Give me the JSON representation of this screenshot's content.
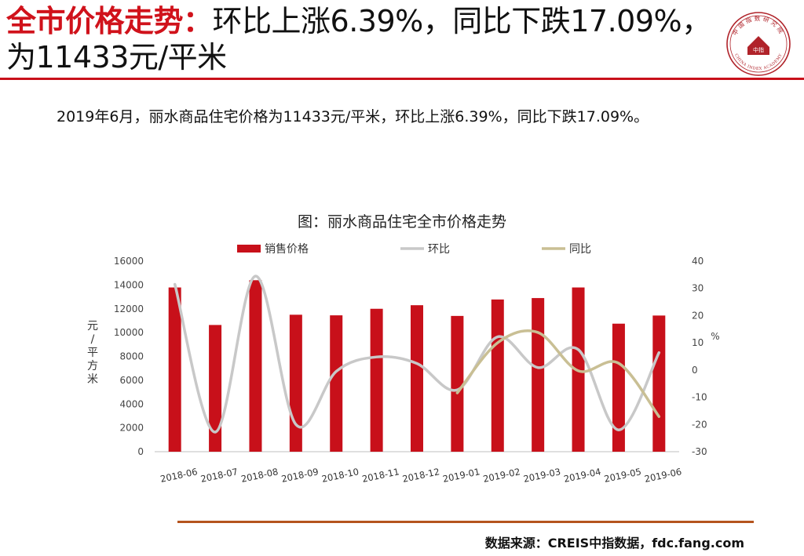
{
  "header": {
    "title_red": "全市价格走势：",
    "title_black": "环比上涨6.39%，同比下跌17.09%，为11433元/平米"
  },
  "logo": {
    "text_top": "中国指数研究院",
    "text_bottom": "CHINA INDEX ACADEMY",
    "center": "中指"
  },
  "summary": "2019年6月，丽水商品住宅价格为11433元/平米，环比上涨6.39%，同比下跌17.09%。",
  "source": "数据来源：CREIS中指数据，fdc.fang.com",
  "colors": {
    "accent": "#c8101a",
    "bar": "#c8101a",
    "mom_line": "#c8c8c8",
    "yoy_line": "#c9bf94",
    "bottom_rule": "#b5541e"
  },
  "chart_data": {
    "type": "bar",
    "title": "图：丽水商品住宅全市价格走势",
    "categories": [
      "2018-06",
      "2018-07",
      "2018-08",
      "2018-09",
      "2018-10",
      "2018-11",
      "2018-12",
      "2019-01",
      "2019-02",
      "2019-03",
      "2019-04",
      "2019-05",
      "2019-06"
    ],
    "series": [
      {
        "name": "销售价格",
        "kind": "bar",
        "axis": "left",
        "values": [
          13790,
          10640,
          14400,
          11500,
          11450,
          12000,
          12300,
          11400,
          12780,
          12900,
          13790,
          10750,
          11433
        ]
      },
      {
        "name": "环比",
        "kind": "line",
        "axis": "right",
        "values": [
          31.5,
          -22.8,
          34.5,
          -20.0,
          -0.5,
          4.8,
          2.4,
          -7.3,
          12.2,
          0.9,
          7.5,
          -22.0,
          6.39
        ]
      },
      {
        "name": "同比",
        "kind": "line",
        "axis": "right",
        "values": [
          null,
          null,
          null,
          null,
          null,
          null,
          null,
          -8.4,
          10.0,
          13.8,
          -0.3,
          2.5,
          -17.09
        ]
      }
    ],
    "ylabel": "元/平方米",
    "ylabel_chars": [
      "元",
      "/",
      "平",
      "方",
      "米"
    ],
    "ylabel_right": "%",
    "ylim": [
      0,
      16000
    ],
    "yticks": [
      0,
      2000,
      4000,
      6000,
      8000,
      10000,
      12000,
      14000,
      16000
    ],
    "ylim_right": [
      -30,
      40
    ],
    "yticks_right": [
      -30,
      -20,
      -10,
      0,
      10,
      20,
      30,
      40
    ],
    "grid": false,
    "legend_position": "top"
  }
}
